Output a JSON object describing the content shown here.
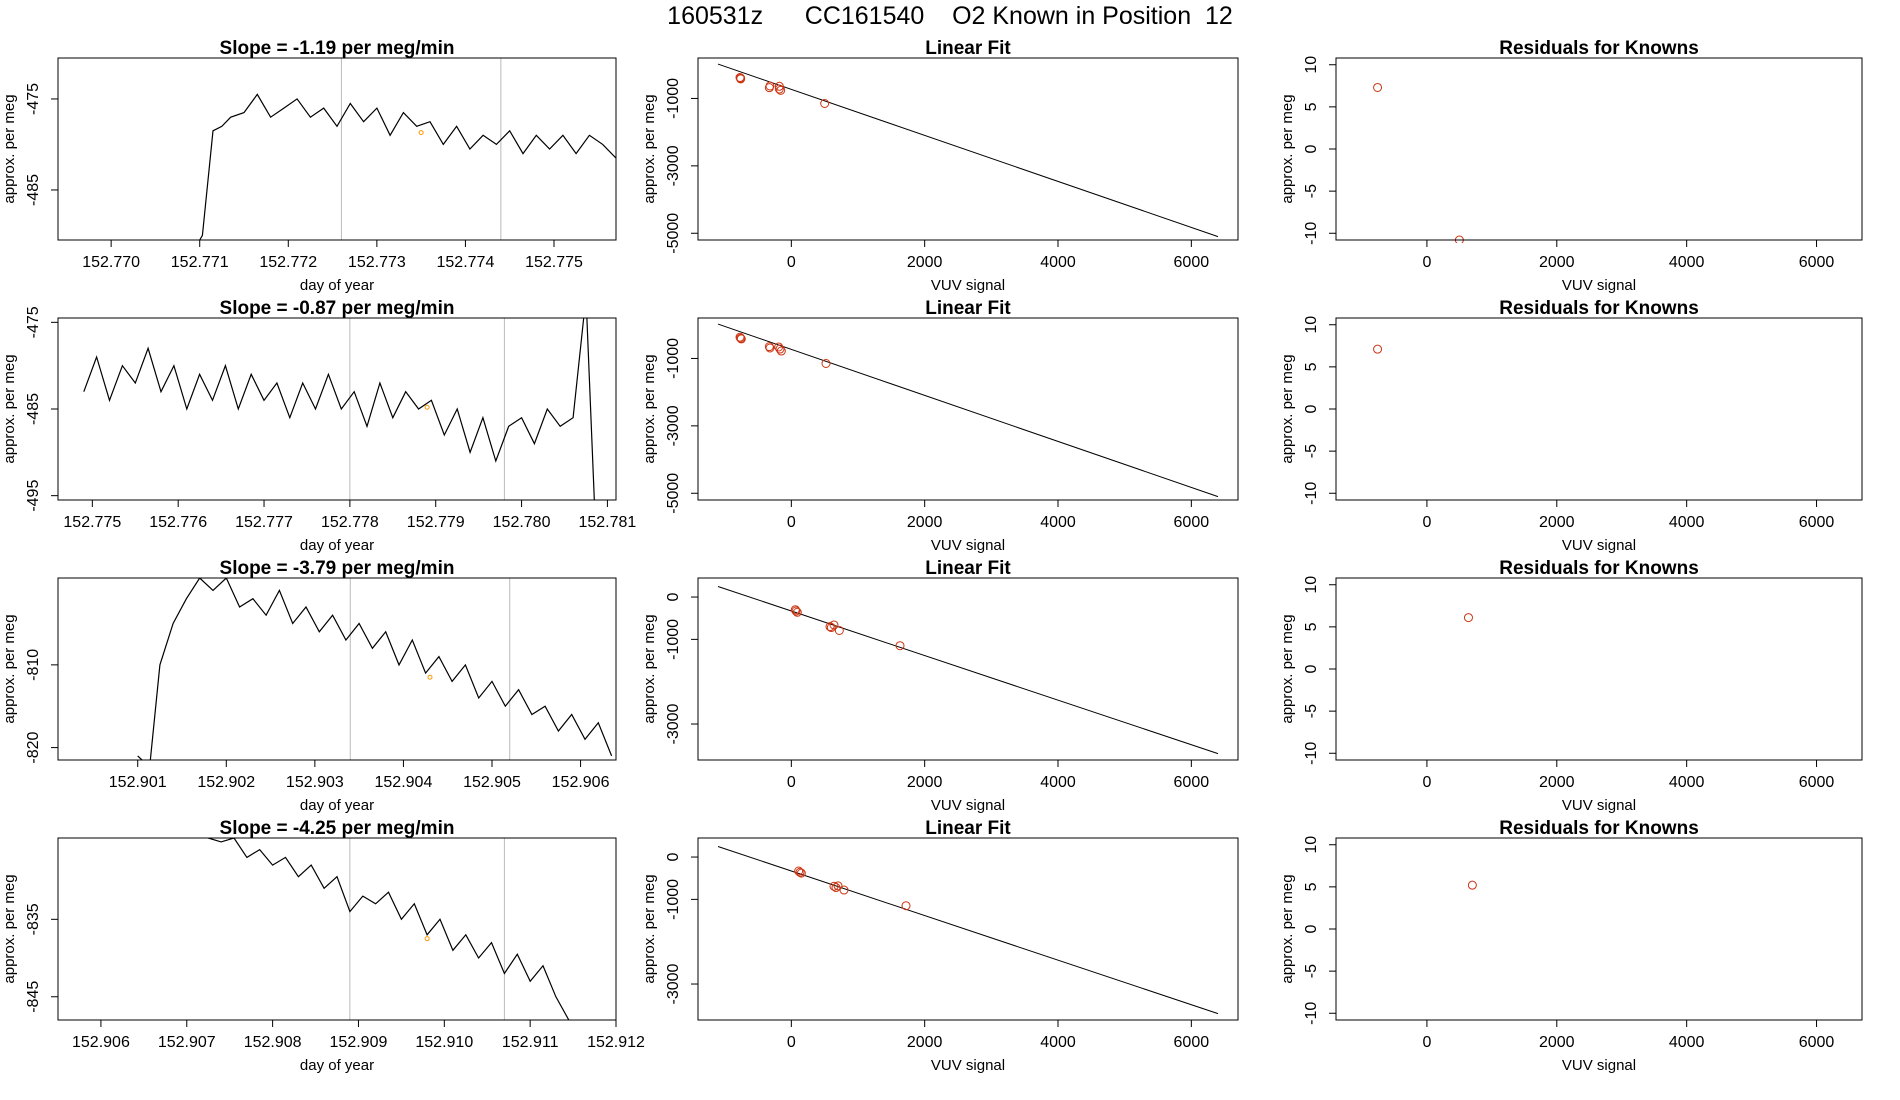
{
  "page": {
    "title": "160531z      CC161540    O2 Known in Position  12",
    "colors": {
      "line": "#000000",
      "point": "#cc3311",
      "marker": "#ff9900",
      "vline": "#bbbbbb"
    }
  },
  "chart_data": [
    {
      "row": 1,
      "time": {
        "type": "line",
        "title": "Slope =  -1.19  per meg/min",
        "xlabel": "day of year",
        "ylabel": "approx. per meg",
        "xlim": [
          152.7694,
          152.7757
        ],
        "ylim": [
          -490.5,
          -470.5
        ],
        "xticks": [
          "152.770",
          "152.771",
          "152.772",
          "152.773",
          "152.774",
          "152.775"
        ],
        "yticks": [
          "-475",
          "-485"
        ],
        "vlines": [
          152.7726,
          152.7744
        ],
        "marker": [
          152.7735,
          -478.7
        ],
        "x": [
          152.771,
          152.77103,
          152.77115,
          152.77125,
          152.77135,
          152.7715,
          152.77165,
          152.7718,
          152.77195,
          152.7721,
          152.77225,
          152.7724,
          152.77255,
          152.7727,
          152.77285,
          152.773,
          152.77315,
          152.7733,
          152.77345,
          152.7736,
          152.77375,
          152.7739,
          152.77405,
          152.7742,
          152.77435,
          152.7745,
          152.77465,
          152.7748,
          152.77495,
          152.7751,
          152.77525,
          152.7754,
          152.77555,
          152.7757
        ],
        "y": [
          -490.5,
          -490,
          -478.5,
          -478,
          -477,
          -476.5,
          -474.5,
          -477,
          -476,
          -475,
          -477,
          -476,
          -478,
          -475.5,
          -477.5,
          -476,
          -479,
          -476.5,
          -478,
          -477.5,
          -480,
          -478,
          -480.5,
          -479,
          -480,
          -478.5,
          -481,
          -479,
          -480.5,
          -479,
          -481,
          -479,
          -480,
          -481.5
        ]
      },
      "fit": {
        "type": "scatter",
        "title": "Linear Fit",
        "xlabel": "VUV signal",
        "ylabel": "approx. per meg",
        "xlim": [
          -1400,
          6700
        ],
        "ylim": [
          -5200,
          200
        ],
        "xticks": [
          0,
          2000,
          4000,
          6000
        ],
        "yticks": [
          -1000,
          -3000,
          -5000
        ],
        "line": [
          [
            -1100,
            20
          ],
          [
            6400,
            -5100
          ]
        ],
        "points": [
          [
            -770,
            -380
          ],
          [
            -760,
            -400
          ],
          [
            -760,
            -420
          ],
          [
            -320,
            -630
          ],
          [
            -330,
            -680
          ],
          [
            -180,
            -640
          ],
          [
            -180,
            -720
          ],
          [
            -160,
            -760
          ],
          [
            500,
            -1150
          ]
        ]
      },
      "resid": {
        "type": "scatter",
        "title": "Residuals for Knowns",
        "xlabel": "VUV signal",
        "ylabel": "approx. per meg",
        "xlim": [
          -1400,
          6700
        ],
        "ylim": [
          -10.8,
          10.8
        ],
        "xticks": [
          0,
          2000,
          4000,
          6000
        ],
        "yticks": [
          10,
          5,
          0,
          -5,
          -10
        ],
        "points": [
          [
            -760,
            7.3
          ],
          [
            500,
            -10.8
          ]
        ]
      }
    },
    {
      "row": 2,
      "time": {
        "type": "line",
        "title": "Slope =  -0.87  per meg/min",
        "xlabel": "day of year",
        "ylabel": "approx. per meg",
        "xlim": [
          152.7746,
          152.7811
        ],
        "ylim": [
          -495.5,
          -474.5
        ],
        "xticks": [
          "152.775",
          "152.776",
          "152.777",
          "152.778",
          "152.779",
          "152.780",
          "152.781"
        ],
        "yticks": [
          "-475",
          "-485",
          "-495"
        ],
        "vlines": [
          152.778,
          152.7798
        ],
        "marker": [
          152.7789,
          -484.8
        ],
        "x": [
          152.7749,
          152.77505,
          152.7752,
          152.77535,
          152.7755,
          152.77565,
          152.7758,
          152.77595,
          152.7761,
          152.77625,
          152.7764,
          152.77655,
          152.7767,
          152.77685,
          152.777,
          152.77715,
          152.7773,
          152.77745,
          152.7776,
          152.77775,
          152.7779,
          152.77805,
          152.7782,
          152.77835,
          152.7785,
          152.77865,
          152.7788,
          152.77895,
          152.7791,
          152.77925,
          152.7794,
          152.77955,
          152.7797,
          152.77985,
          152.78,
          152.78015,
          152.7803,
          152.78045,
          152.7806,
          152.78075,
          152.78085
        ],
        "y": [
          -483,
          -479,
          -484,
          -480,
          -482,
          -478,
          -483,
          -480,
          -485,
          -481,
          -484,
          -480,
          -485,
          -481,
          -484,
          -482,
          -486,
          -482,
          -485,
          -481,
          -485,
          -483,
          -487,
          -482,
          -486,
          -483,
          -485,
          -484,
          -488,
          -485,
          -490,
          -486,
          -491,
          -487,
          -486,
          -489,
          -485,
          -487,
          -486,
          -472,
          -496
        ]
      },
      "fit": {
        "type": "scatter",
        "title": "Linear Fit",
        "xlabel": "VUV signal",
        "ylabel": "approx. per meg",
        "xlim": [
          -1400,
          6700
        ],
        "ylim": [
          -5200,
          200
        ],
        "xticks": [
          0,
          2000,
          4000,
          6000
        ],
        "yticks": [
          -1000,
          -3000,
          -5000
        ],
        "line": [
          [
            -1100,
            20
          ],
          [
            6400,
            -5100
          ]
        ],
        "points": [
          [
            -770,
            -370
          ],
          [
            -760,
            -400
          ],
          [
            -750,
            -420
          ],
          [
            -330,
            -650
          ],
          [
            -320,
            -690
          ],
          [
            -190,
            -660
          ],
          [
            -170,
            -720
          ],
          [
            -150,
            -780
          ],
          [
            520,
            -1150
          ]
        ]
      },
      "resid": {
        "type": "scatter",
        "title": "Residuals for Knowns",
        "xlabel": "VUV signal",
        "ylabel": "approx. per meg",
        "xlim": [
          -1400,
          6700
        ],
        "ylim": [
          -10.8,
          10.8
        ],
        "xticks": [
          0,
          2000,
          4000,
          6000
        ],
        "yticks": [
          10,
          5,
          0,
          -5,
          -10
        ],
        "points": [
          [
            -760,
            7.1
          ]
        ]
      }
    },
    {
      "row": 3,
      "time": {
        "type": "line",
        "title": "Slope =  -3.79  per meg/min",
        "xlabel": "day of year",
        "ylabel": "approx. per meg",
        "xlim": [
          152.9001,
          152.9064
        ],
        "ylim": [
          -821.5,
          -799.5
        ],
        "xticks": [
          "152.901",
          "152.902",
          "152.903",
          "152.904",
          "152.905",
          "152.906"
        ],
        "yticks": [
          "-810",
          "-820"
        ],
        "vlines": [
          152.9034,
          152.9052
        ],
        "marker": [
          152.9043,
          -811.5
        ],
        "x": [
          152.901,
          152.90105,
          152.9011,
          152.90125,
          152.9014,
          152.90155,
          152.9017,
          152.90185,
          152.902,
          152.90215,
          152.9023,
          152.90245,
          152.9026,
          152.90275,
          152.9029,
          152.90305,
          152.9032,
          152.90335,
          152.9035,
          152.90365,
          152.9038,
          152.90395,
          152.9041,
          152.90425,
          152.9044,
          152.90455,
          152.9047,
          152.90485,
          152.905,
          152.90515,
          152.9053,
          152.90545,
          152.9056,
          152.90575,
          152.9059,
          152.90605,
          152.9062,
          152.90635
        ],
        "y": [
          -821,
          -821.5,
          -826,
          -810,
          -805,
          -802,
          -799.5,
          -801,
          -799.5,
          -803,
          -802,
          -804,
          -801,
          -805,
          -803,
          -806,
          -804,
          -807,
          -805,
          -808,
          -806,
          -810,
          -807,
          -811,
          -809,
          -812,
          -810,
          -814,
          -812,
          -815,
          -813,
          -816,
          -815,
          -818,
          -816,
          -819,
          -817,
          -821
        ]
      },
      "fit": {
        "type": "scatter",
        "title": "Linear Fit",
        "xlabel": "VUV signal",
        "ylabel": "approx. per meg",
        "xlim": [
          -1400,
          6700
        ],
        "ylim": [
          -3850,
          450
        ],
        "xticks": [
          0,
          2000,
          4000,
          6000
        ],
        "yticks": [
          0,
          -1000,
          -3000
        ],
        "line": [
          [
            -1100,
            250
          ],
          [
            6400,
            -3700
          ]
        ],
        "points": [
          [
            60,
            -300
          ],
          [
            70,
            -330
          ],
          [
            90,
            -360
          ],
          [
            580,
            -700
          ],
          [
            600,
            -720
          ],
          [
            640,
            -660
          ],
          [
            720,
            -790
          ],
          [
            1630,
            -1150
          ]
        ]
      },
      "resid": {
        "type": "scatter",
        "title": "Residuals for Knowns",
        "xlabel": "VUV signal",
        "ylabel": "approx. per meg",
        "xlim": [
          -1400,
          6700
        ],
        "ylim": [
          -10.8,
          10.8
        ],
        "xticks": [
          0,
          2000,
          4000,
          6000
        ],
        "yticks": [
          10,
          5,
          0,
          -5,
          -10
        ],
        "points": [
          [
            640,
            6.1
          ]
        ]
      }
    },
    {
      "row": 4,
      "time": {
        "type": "line",
        "title": "Slope =  -4.25  per meg/min",
        "xlabel": "day of year",
        "ylabel": "approx. per meg",
        "xlim": [
          152.9055,
          152.912
        ],
        "ylim": [
          -848,
          -824.5
        ],
        "xticks": [
          "152.906",
          "152.907",
          "152.908",
          "152.909",
          "152.910",
          "152.911",
          "152.912"
        ],
        "yticks": [
          "-835",
          "-845"
        ],
        "vlines": [
          152.9089,
          152.9107
        ],
        "marker": [
          152.9098,
          -837.5
        ],
        "x": [
          152.90725,
          152.9074,
          152.90755,
          152.9077,
          152.90785,
          152.908,
          152.90815,
          152.9083,
          152.90845,
          152.9086,
          152.90875,
          152.9089,
          152.90905,
          152.9092,
          152.90935,
          152.9095,
          152.90965,
          152.9098,
          152.90995,
          152.9101,
          152.91025,
          152.9104,
          152.91055,
          152.9107,
          152.91085,
          152.911,
          152.91115,
          152.9113,
          152.91145
        ],
        "y": [
          -824.5,
          -825,
          -824.5,
          -827,
          -826,
          -828,
          -827,
          -829.5,
          -828,
          -831,
          -829.5,
          -834,
          -832,
          -833,
          -831.5,
          -835,
          -833,
          -837,
          -835,
          -839,
          -837,
          -840,
          -838,
          -842,
          -839.5,
          -843,
          -841,
          -845,
          -848
        ]
      },
      "fit": {
        "type": "scatter",
        "title": "Linear Fit",
        "xlabel": "VUV signal",
        "ylabel": "approx. per meg",
        "xlim": [
          -1400,
          6700
        ],
        "ylim": [
          -3850,
          450
        ],
        "xticks": [
          0,
          2000,
          4000,
          6000
        ],
        "yticks": [
          0,
          -1000,
          -3000
        ],
        "line": [
          [
            -1100,
            250
          ],
          [
            6400,
            -3700
          ]
        ],
        "points": [
          [
            110,
            -330
          ],
          [
            130,
            -360
          ],
          [
            150,
            -380
          ],
          [
            640,
            -690
          ],
          [
            670,
            -720
          ],
          [
            700,
            -680
          ],
          [
            790,
            -780
          ],
          [
            1720,
            -1150
          ]
        ]
      },
      "resid": {
        "type": "scatter",
        "title": "Residuals for Knowns",
        "xlabel": "VUV signal",
        "ylabel": "approx. per meg",
        "xlim": [
          -1400,
          6700
        ],
        "ylim": [
          -10.8,
          10.8
        ],
        "xticks": [
          0,
          2000,
          4000,
          6000
        ],
        "yticks": [
          10,
          5,
          0,
          -5,
          -10
        ],
        "points": [
          [
            700,
            5.2
          ]
        ]
      }
    }
  ]
}
